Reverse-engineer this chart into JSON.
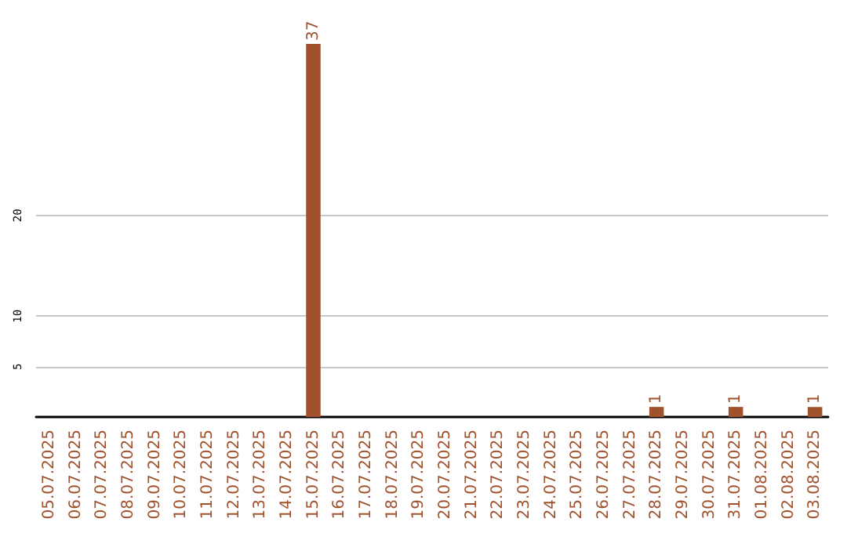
{
  "chart_data": {
    "type": "bar",
    "categories": [
      "05.07.2025",
      "06.07.2025",
      "07.07.2025",
      "08.07.2025",
      "09.07.2025",
      "10.07.2025",
      "11.07.2025",
      "12.07.2025",
      "13.07.2025",
      "14.07.2025",
      "15.07.2025",
      "16.07.2025",
      "17.07.2025",
      "18.07.2025",
      "19.07.2025",
      "20.07.2025",
      "21.07.2025",
      "22.07.2025",
      "23.07.2025",
      "24.07.2025",
      "25.07.2025",
      "26.07.2025",
      "27.07.2025",
      "28.07.2025",
      "29.07.2025",
      "30.07.2025",
      "31.07.2025",
      "01.08.2025",
      "02.08.2025",
      "03.08.2025"
    ],
    "values": [
      0,
      0,
      0,
      0,
      0,
      0,
      0,
      0,
      0,
      0,
      37,
      0,
      0,
      0,
      0,
      0,
      0,
      0,
      0,
      0,
      0,
      0,
      0,
      1,
      0,
      0,
      1,
      0,
      0,
      1
    ],
    "value_labels": [
      null,
      null,
      null,
      null,
      null,
      null,
      null,
      null,
      null,
      null,
      "37",
      null,
      null,
      null,
      null,
      null,
      null,
      null,
      null,
      null,
      null,
      null,
      null,
      "1",
      null,
      null,
      "1",
      null,
      null,
      "1"
    ],
    "color": "#a0522d",
    "ylim": [
      0,
      37
    ],
    "yticks": [
      5,
      10,
      20
    ],
    "grid": "y"
  }
}
